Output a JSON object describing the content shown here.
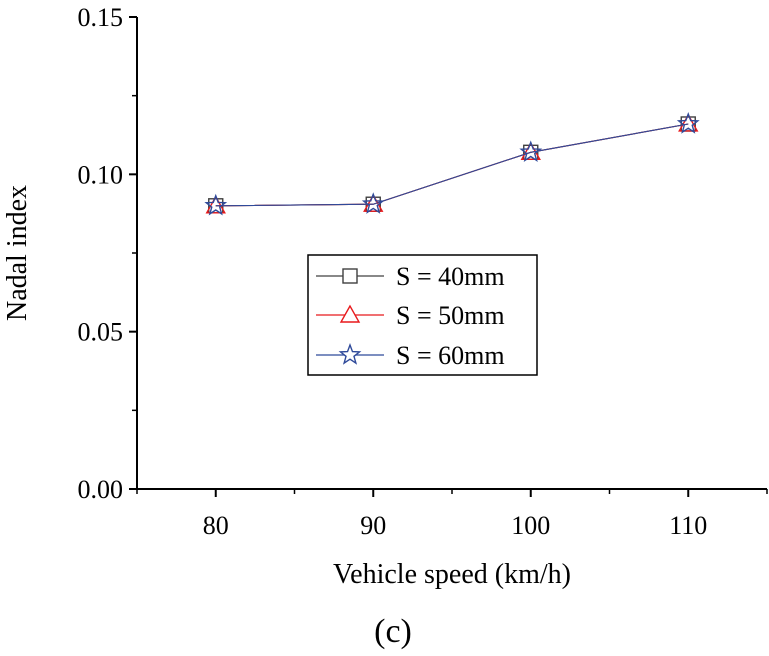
{
  "chart_data": {
    "type": "line",
    "title": "",
    "xlabel": "Vehicle speed (km/h)",
    "ylabel": "Nadal index",
    "caption": "(c)",
    "x": [
      80,
      90,
      100,
      110
    ],
    "xlim": [
      75,
      115
    ],
    "ylim": [
      0,
      0.15
    ],
    "x_ticks": [
      80,
      90,
      100,
      110
    ],
    "x_tick_labels": [
      "80",
      "90",
      "100",
      "110"
    ],
    "y_ticks": [
      0,
      0.05,
      0.1,
      0.15
    ],
    "y_tick_labels": [
      "0.00",
      "0.05",
      "0.10",
      "0.15"
    ],
    "grid": false,
    "legend_position": "center",
    "series": [
      {
        "name": "S = 40mm",
        "marker": "square",
        "color": "#404040",
        "values": [
          0.09,
          0.0905,
          0.107,
          0.116
        ]
      },
      {
        "name": "S = 50mm",
        "marker": "triangle",
        "color": "#e8191c",
        "values": [
          0.09,
          0.0905,
          0.107,
          0.116
        ]
      },
      {
        "name": "S = 60mm",
        "marker": "star",
        "color": "#2f4a9a",
        "values": [
          0.09,
          0.0905,
          0.107,
          0.116
        ]
      }
    ]
  }
}
